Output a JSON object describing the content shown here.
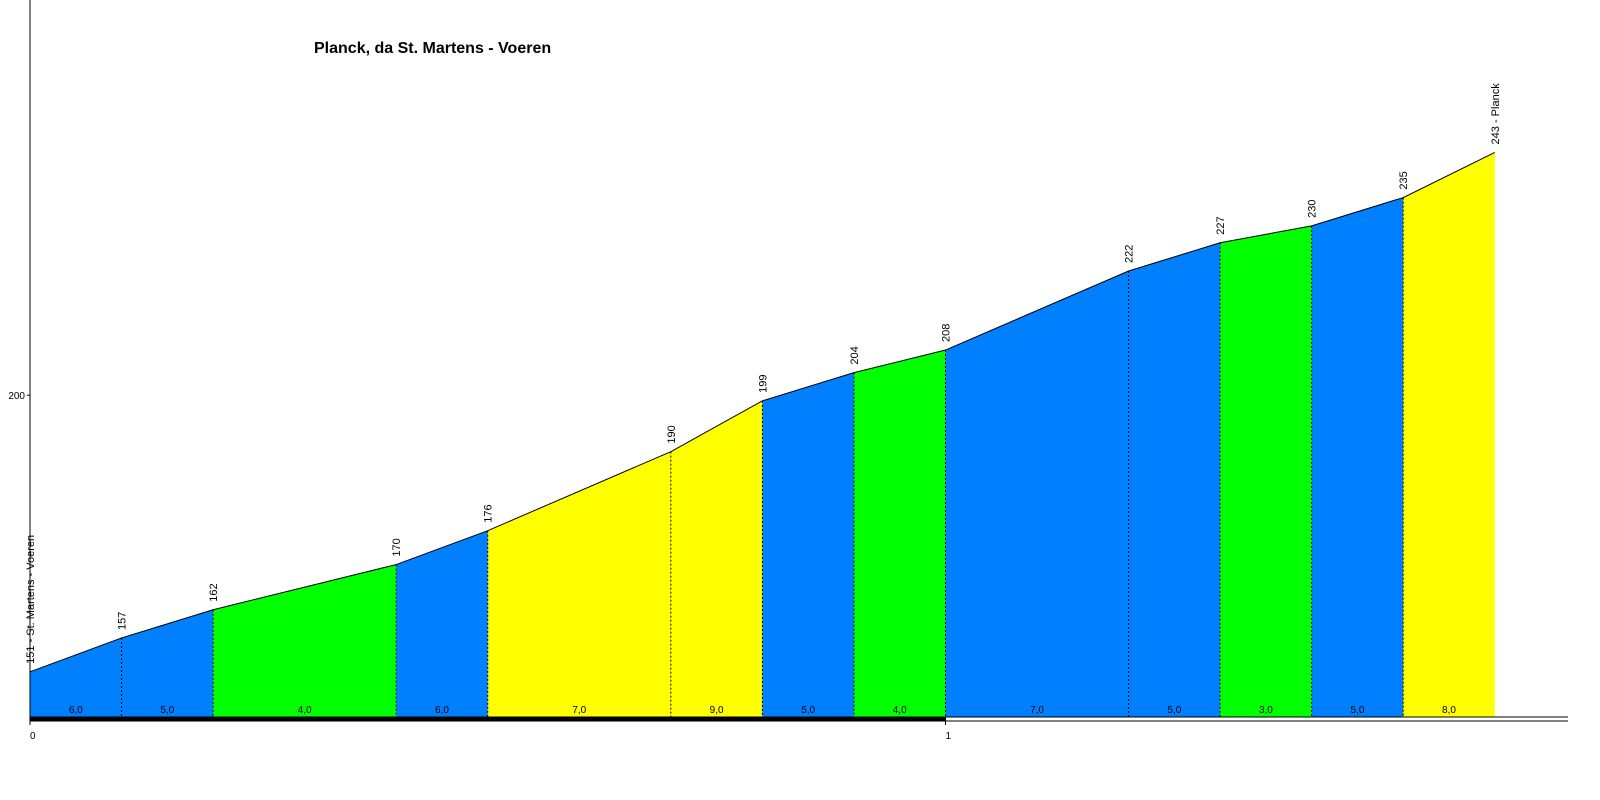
{
  "chart_data": {
    "type": "elevation-profile",
    "title": "Planck, da St. Martens - Voeren",
    "x": [
      0,
      0.1,
      0.2,
      0.4,
      0.5,
      0.7,
      0.8,
      0.9,
      1.0,
      1.2,
      1.3,
      1.4,
      1.5,
      1.6
    ],
    "values": [
      151,
      157,
      162,
      170,
      176,
      190,
      199,
      204,
      208,
      222,
      227,
      230,
      235,
      243
    ],
    "value_labels": [
      "151 - St. Martens - Voeren",
      "157",
      "162",
      "170",
      "176",
      "190",
      "199",
      "204",
      "208",
      "222",
      "227",
      "230",
      "235",
      "243 - Planck"
    ],
    "segments": {
      "values": [
        6,
        5,
        4,
        6,
        7,
        9,
        5,
        4,
        7,
        5,
        3,
        5,
        8
      ],
      "value_labels": [
        "6,0",
        "5,0",
        "4,0",
        "6,0",
        "7,0",
        "9,0",
        "5,0",
        "4,0",
        "7,0",
        "5,0",
        "3,0",
        "5,0",
        "8,0"
      ],
      "colors": [
        "#0080ff",
        "#0080ff",
        "#00ff00",
        "#0080ff",
        "#ffff00",
        "#ffff00",
        "#0080ff",
        "#00ff00",
        "#0080ff",
        "#0080ff",
        "#00ff00",
        "#0080ff",
        "#ffff00"
      ]
    },
    "xlim": [
      0,
      1.68
    ],
    "xticks": [
      0,
      1
    ],
    "ylim": [
      143,
      270
    ],
    "yticks": [
      200
    ]
  }
}
